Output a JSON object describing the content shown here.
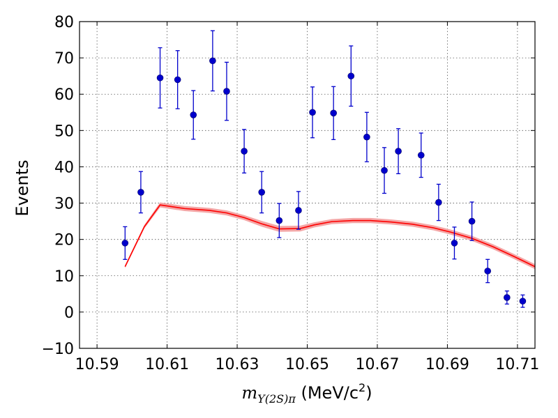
{
  "chart_data": {
    "type": "scatter",
    "title": "",
    "xlabel": {
      "math_main": "m",
      "math_sub": "Υ(2S)π",
      "unit_prefix": " (MeV/c",
      "unit_power": "2",
      "unit_suffix": ")"
    },
    "ylabel": "Events",
    "xlim": [
      10.585,
      10.715
    ],
    "ylim": [
      -10,
      80
    ],
    "grid": true,
    "x_ticks": [
      10.59,
      10.61,
      10.63,
      10.65,
      10.67,
      10.69,
      10.71
    ],
    "x_tick_labels": [
      "10.59",
      "10.61",
      "10.63",
      "10.65",
      "10.67",
      "10.69",
      "10.71"
    ],
    "y_ticks": [
      -10,
      0,
      10,
      20,
      30,
      40,
      50,
      60,
      70,
      80
    ],
    "y_tick_labels": [
      "−10",
      "0",
      "10",
      "20",
      "30",
      "40",
      "50",
      "60",
      "70",
      "80"
    ],
    "colors": {
      "points": "#0000cc",
      "fit_line": "#ff0000",
      "fit_band": "#f4a6a6",
      "grid": "#555555"
    },
    "series": [
      {
        "kind": "data_points_with_error_bars",
        "points": [
          {
            "x": 10.598,
            "y": 19,
            "err": 4.5
          },
          {
            "x": 10.6025,
            "y": 33,
            "err": 5.7
          },
          {
            "x": 10.608,
            "y": 64.5,
            "err": 8.3
          },
          {
            "x": 10.613,
            "y": 64,
            "err": 8.0
          },
          {
            "x": 10.6175,
            "y": 54.3,
            "err": 6.7
          },
          {
            "x": 10.623,
            "y": 69.2,
            "err": 8.3
          },
          {
            "x": 10.627,
            "y": 60.8,
            "err": 8.0
          },
          {
            "x": 10.632,
            "y": 44.3,
            "err": 6.0
          },
          {
            "x": 10.637,
            "y": 33,
            "err": 5.7
          },
          {
            "x": 10.642,
            "y": 25.2,
            "err": 4.7
          },
          {
            "x": 10.6475,
            "y": 28,
            "err": 5.2
          },
          {
            "x": 10.6515,
            "y": 55,
            "err": 7.0
          },
          {
            "x": 10.6575,
            "y": 54.8,
            "err": 7.3
          },
          {
            "x": 10.6625,
            "y": 65,
            "err": 8.3
          },
          {
            "x": 10.667,
            "y": 48.2,
            "err": 6.8
          },
          {
            "x": 10.672,
            "y": 39,
            "err": 6.3
          },
          {
            "x": 10.676,
            "y": 44.3,
            "err": 6.2
          },
          {
            "x": 10.6825,
            "y": 43.2,
            "err": 6.1
          },
          {
            "x": 10.6875,
            "y": 30.2,
            "err": 5.0
          },
          {
            "x": 10.692,
            "y": 19,
            "err": 4.4
          },
          {
            "x": 10.697,
            "y": 25,
            "err": 5.3
          },
          {
            "x": 10.7015,
            "y": 11.3,
            "err": 3.2
          },
          {
            "x": 10.707,
            "y": 4,
            "err": 1.8
          },
          {
            "x": 10.7115,
            "y": 3,
            "err": 1.7
          }
        ]
      },
      {
        "kind": "fit_curve_with_band",
        "points": [
          {
            "x": 10.598,
            "y": 12.5,
            "band": 0.4
          },
          {
            "x": 10.6035,
            "y": 23.5,
            "band": 0.5
          },
          {
            "x": 10.608,
            "y": 29.5,
            "band": 0.7
          },
          {
            "x": 10.615,
            "y": 28.5,
            "band": 0.7
          },
          {
            "x": 10.622,
            "y": 28,
            "band": 0.7
          },
          {
            "x": 10.627,
            "y": 27.3,
            "band": 0.7
          },
          {
            "x": 10.632,
            "y": 26,
            "band": 0.7
          },
          {
            "x": 10.637,
            "y": 24.3,
            "band": 0.8
          },
          {
            "x": 10.642,
            "y": 22.9,
            "band": 0.8
          },
          {
            "x": 10.648,
            "y": 23,
            "band": 0.8
          },
          {
            "x": 10.652,
            "y": 24,
            "band": 0.7
          },
          {
            "x": 10.657,
            "y": 24.9,
            "band": 0.7
          },
          {
            "x": 10.663,
            "y": 25.2,
            "band": 0.7
          },
          {
            "x": 10.668,
            "y": 25.2,
            "band": 0.7
          },
          {
            "x": 10.674,
            "y": 24.8,
            "band": 0.7
          },
          {
            "x": 10.68,
            "y": 24.2,
            "band": 0.7
          },
          {
            "x": 10.686,
            "y": 23.2,
            "band": 0.7
          },
          {
            "x": 10.691,
            "y": 22,
            "band": 0.7
          },
          {
            "x": 10.697,
            "y": 20.3,
            "band": 0.7
          },
          {
            "x": 10.703,
            "y": 18,
            "band": 0.7
          },
          {
            "x": 10.709,
            "y": 15.3,
            "band": 0.7
          },
          {
            "x": 10.715,
            "y": 12.5,
            "band": 0.7
          }
        ]
      }
    ]
  }
}
